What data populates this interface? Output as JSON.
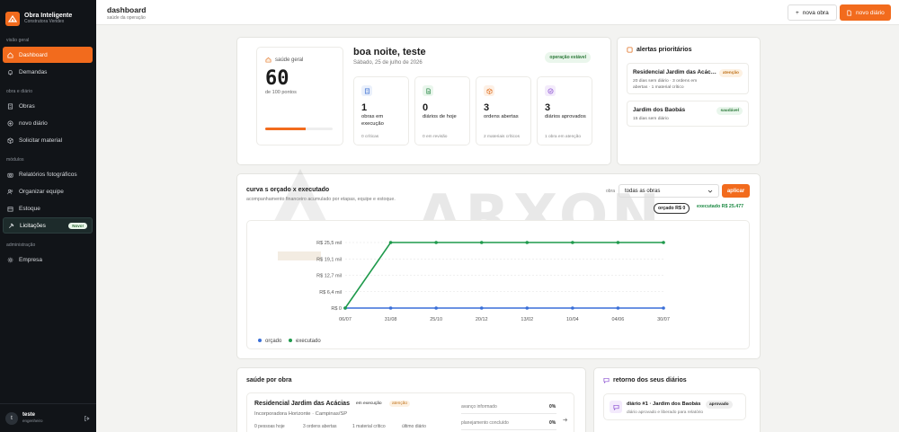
{
  "brand": {
    "name": "Obra Inteligente",
    "subtitle": "Construtora Veridex"
  },
  "nav": {
    "sections": [
      "visão geral",
      "obra e diário",
      "módulos",
      "administração"
    ],
    "items": [
      {
        "label": "Dashboard",
        "icon": "home-icon"
      },
      {
        "label": "Demandas",
        "icon": "bell-icon"
      },
      {
        "label": "Obras",
        "icon": "building-icon"
      },
      {
        "label": "novo diário",
        "icon": "plus-circle-icon"
      },
      {
        "label": "Solicitar material",
        "icon": "package-icon"
      },
      {
        "label": "Relatórios fotográficos",
        "icon": "camera-icon"
      },
      {
        "label": "Organizar equipe",
        "icon": "users-icon"
      },
      {
        "label": "Estoque",
        "icon": "box-icon"
      },
      {
        "label": "Licitações",
        "icon": "hammer-icon",
        "badge": "Novo!"
      },
      {
        "label": "Empresa",
        "icon": "gear-icon"
      }
    ]
  },
  "user": {
    "initial": "t",
    "name": "teste",
    "role": "engenheiro"
  },
  "header": {
    "title": "dashboard",
    "subtitle": "saúde da operação",
    "btn_new_obra": "nova obra",
    "btn_new_diario": "novo diário"
  },
  "overview": {
    "health_title": "saúde geral",
    "health_score": "60",
    "health_sub": "de 100 pontos",
    "health_progress": 0.6,
    "greeting": "boa noite, teste",
    "date": "Sábado, 25 de julho de 2026",
    "status": "operação estável",
    "stats": [
      {
        "num": "1",
        "label": "obras em execução",
        "foot": "0 críticas",
        "icon": "building-icon",
        "color": "#eaf0fb",
        "stroke": "#3c6fd1"
      },
      {
        "num": "0",
        "label": "diários de hoje",
        "foot": "0 em revisão",
        "icon": "file-icon",
        "color": "#e9f6ec",
        "stroke": "#2d8a4a"
      },
      {
        "num": "3",
        "label": "ordens abertas",
        "foot": "2 materiais críticos",
        "icon": "package-icon",
        "color": "#fdf0e5",
        "stroke": "#e07020"
      },
      {
        "num": "3",
        "label": "diários aprovados",
        "foot": "1 obra em atenção",
        "icon": "check-icon",
        "color": "#f3ebfb",
        "stroke": "#8a4fd1"
      }
    ]
  },
  "alerts": {
    "title": "alertas prioritários",
    "items": [
      {
        "name": "Residencial Jardim das Acác…",
        "badge": "atenção",
        "desc": "20 dias sem diário · 3 ordens em abertas · 1 material crítico",
        "badge_bg": "#fdf1e2",
        "badge_fg": "#c0741d"
      },
      {
        "name": "Jardim dos Baobás",
        "badge": "saudável",
        "desc": "15 dias sem diário",
        "badge_bg": "#e9f6ec",
        "badge_fg": "#2d7a3a"
      }
    ]
  },
  "curve": {
    "title": "curva s orçado x executado",
    "subtitle": "acompanhamento financeiro acumulado por etapas, equipe e estoque.",
    "filter_label": "obra",
    "filter_value": "todas as obras",
    "apply": "aplicar",
    "pill_orcado": "orçado R$ 0",
    "pill_executado": "executado R$ 25.477",
    "watermark": "ARXON"
  },
  "chart_data": {
    "type": "line",
    "x": [
      "06/07",
      "31/08",
      "25/10",
      "20/12",
      "13/02",
      "10/04",
      "04/06",
      "30/07"
    ],
    "y_ticks": [
      "R$ 0",
      "R$ 6,4 mil",
      "R$ 12,7 mil",
      "R$ 19,1 mil",
      "R$ 25,5 mil"
    ],
    "ylim": [
      0,
      25477
    ],
    "series": [
      {
        "name": "orçado",
        "color": "#3a6fd8",
        "values": [
          0,
          0,
          0,
          0,
          0,
          0,
          0,
          0
        ]
      },
      {
        "name": "executado",
        "color": "#1f9a4c",
        "values": [
          0,
          25477,
          25477,
          25477,
          25477,
          25477,
          25477,
          25477
        ]
      }
    ],
    "legend": "bottom-left",
    "grid": true
  },
  "obras": {
    "title": "saúde por obra",
    "item": {
      "name": "Residencial Jardim das Acácias",
      "tag_status": "em execução",
      "tag_alert": "atenção",
      "company": "Incorporadora Horizonte · Campinas/SP",
      "s1": "0 pessoas hoje",
      "s2": "3 ordens abertas",
      "s3": "1 material crítico",
      "s4": "último diário",
      "p1_label": "avanço informado",
      "p1_val": "0%",
      "p2_label": "planejamento concluído",
      "p2_val": "0%"
    }
  },
  "retorno": {
    "title": "retorno dos seus diários",
    "item": {
      "name": "diário #1 · Jardim dos Baobás",
      "badge": "aprovado",
      "desc": "diário aprovado e liberado para relatório"
    }
  }
}
